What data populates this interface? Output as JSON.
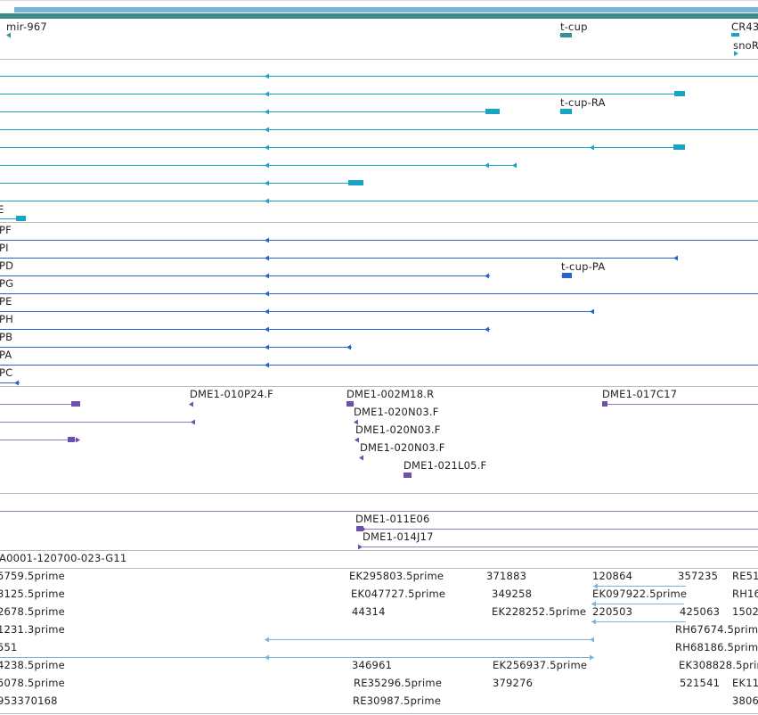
{
  "colors": {
    "header_bar": "#3a8a8a",
    "gene": "#3a8f96",
    "transcript": "#1aa3c4",
    "protein": "#2a63cc",
    "bac": "#6d4fb0",
    "bac_line": "#8a7fb8",
    "est": "#7ab4dc",
    "separator": "#b8bec4"
  },
  "tracks": {
    "genes": {
      "labels": [
        "mir-967",
        "t-cup",
        "CR43",
        "snoR"
      ]
    },
    "transcripts": {
      "labels": [
        "t-cup-RA",
        "E"
      ]
    },
    "proteins": {
      "labels": [
        "PF",
        "PI",
        "PD",
        "t-cup-PA",
        "PG",
        "PE",
        "PH",
        "PB",
        "PA",
        "PC"
      ]
    },
    "bacs": {
      "labels": [
        "DME1-010P24.F",
        "DME1-002M18.R",
        "DME1-017C17",
        "DME1-020N03.F",
        "DME1-020N03.F",
        "DME1-020N03.F",
        "DME1-021L05.F"
      ]
    },
    "bac_ends": {
      "labels": [
        "DME1-011E06",
        "DME1-014J17"
      ]
    },
    "ests": {
      "header": "A0001-120700-023-G11",
      "labels": [
        "5759.5prime",
        "EK295803.5prime",
        "371883",
        "120864",
        "357235",
        "RE51",
        "3125.5prime",
        "EK047727.5prime",
        "349258",
        "EK097922.5prime",
        "RH16",
        "2678.5prime",
        "44314",
        "EK228252.5prime",
        "220503",
        "425063",
        "1502",
        "1231.3prime",
        "RH67674.5prim",
        "551",
        "RH68186.5prim",
        "4238.5prime",
        "346961",
        "EK256937.5prime",
        "EK308828.5prim",
        "5078.5prime",
        "RE35296.5prime",
        "379276",
        "521541",
        "EK11",
        "953370168",
        "RE30987.5prime",
        "3806"
      ]
    }
  }
}
